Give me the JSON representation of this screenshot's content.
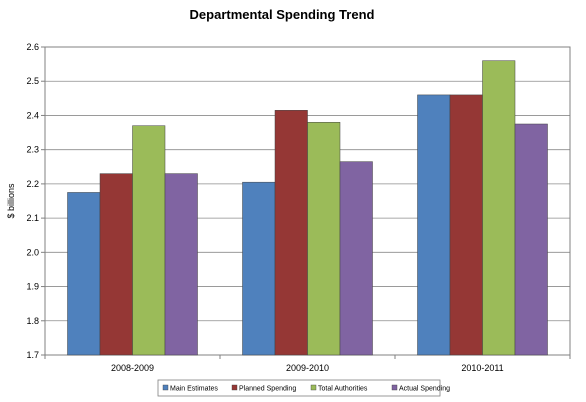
{
  "chart_data": {
    "type": "bar",
    "title": "Departmental Spending Trend",
    "xlabel": "",
    "ylabel": "$ billions",
    "ylim": [
      1.7,
      2.6
    ],
    "yticks": [
      "1.7",
      "1.8",
      "1.9",
      "2.0",
      "2.1",
      "2.2",
      "2.3",
      "2.4",
      "2.5",
      "2.6"
    ],
    "categories": [
      "2008-2009",
      "2009-2010",
      "2010-2011"
    ],
    "series": [
      {
        "name": "Main Estimates",
        "color": "#4f81bd",
        "values": [
          2.175,
          2.205,
          2.46
        ]
      },
      {
        "name": "Planned Spending",
        "color": "#953735",
        "values": [
          2.23,
          2.415,
          2.46
        ]
      },
      {
        "name": "Total Authorities",
        "color": "#9bbb59",
        "values": [
          2.37,
          2.38,
          2.56
        ]
      },
      {
        "name": "Actual Spending",
        "color": "#8064a2",
        "values": [
          2.23,
          2.265,
          2.375
        ]
      }
    ],
    "grid": true,
    "legend": "bottom"
  }
}
